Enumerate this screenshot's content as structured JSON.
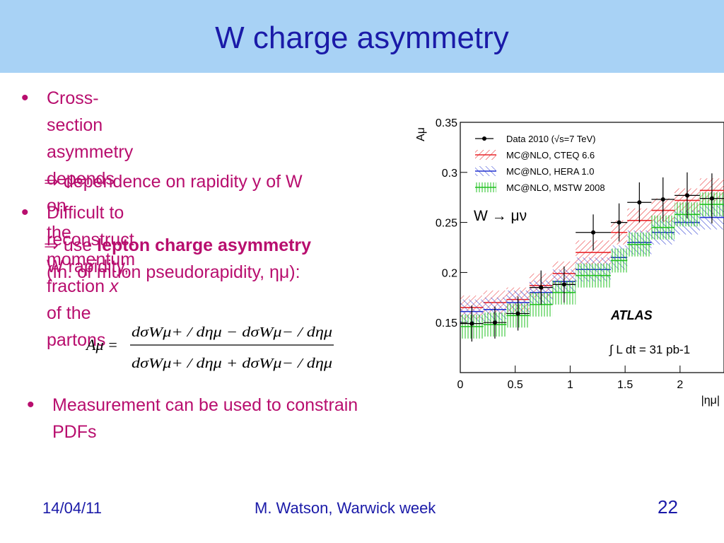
{
  "slide": {
    "title": "W charge asymmetry",
    "bullets": [
      {
        "lines": [
          "Cross-section asymmetry depends on",
          "the momentum fraction ",
          "x",
          " of the",
          "partons"
        ]
      },
      {
        "implies": "⇒ dependence on rapidity y of W"
      },
      {
        "text": "Difficult to reconstruct W rapidity,"
      },
      {
        "implies_prefix": "⇒ use ",
        "implies_bold": "lepton charge asymmetry"
      },
      {
        "text": "(fn. of muon pseudorapidity, ημ):"
      },
      {
        "text": "Measurement can be used to constrain PDFs"
      }
    ],
    "formula": {
      "lhs": "Aμ =",
      "numerator": "dσWμ+ / dημ − dσWμ− / dημ",
      "denominator": "dσWμ+ / dημ + dσWμ− / dημ"
    },
    "footer": {
      "date": "14/04/11",
      "author": "M. Watson, Warwick week",
      "page": "22"
    }
  },
  "chart_data": {
    "type": "scatter",
    "xlabel": "|ημ|",
    "ylabel": "Aμ",
    "xlim": [
      0,
      2.4
    ],
    "ylim": [
      0.1,
      0.35
    ],
    "xticks": [
      "0",
      "0.5",
      "1",
      "1.5",
      "2"
    ],
    "yticks": [
      "0.15",
      "0.2",
      "0.25",
      "0.3",
      "0.35"
    ],
    "annotations": [
      "W → μν",
      "ATLAS",
      "∫ L dt = 31 pb-1"
    ],
    "bins": [
      [
        0.0,
        0.21
      ],
      [
        0.21,
        0.42
      ],
      [
        0.42,
        0.63
      ],
      [
        0.63,
        0.84
      ],
      [
        0.84,
        1.05
      ],
      [
        1.05,
        1.37
      ],
      [
        1.37,
        1.52
      ],
      [
        1.52,
        1.74
      ],
      [
        1.74,
        1.95
      ],
      [
        1.95,
        2.18
      ],
      [
        2.18,
        2.4
      ]
    ],
    "series": [
      {
        "name": "Data 2010 (√s=7 TeV)",
        "color": "#000000",
        "values": [
          0.149,
          0.15,
          0.159,
          0.185,
          0.188,
          0.24,
          0.25,
          0.27,
          0.273,
          0.277,
          0.274
        ],
        "errors": [
          0.018,
          0.016,
          0.017,
          0.017,
          0.018,
          0.018,
          0.019,
          0.02,
          0.022,
          0.023,
          0.025
        ]
      },
      {
        "name": "MC@NLO, CTEQ 6.6",
        "color": "#e8262a",
        "values": [
          0.165,
          0.17,
          0.173,
          0.187,
          0.199,
          0.22,
          0.24,
          0.252,
          0.262,
          0.272,
          0.282
        ]
      },
      {
        "name": "MC@NLO, HERA 1.0",
        "color": "#2030d0",
        "values": [
          0.161,
          0.163,
          0.17,
          0.18,
          0.191,
          0.203,
          0.215,
          0.23,
          0.24,
          0.25,
          0.255
        ]
      },
      {
        "name": "MC@NLO, MSTW 2008",
        "color": "#20c020",
        "values": [
          0.146,
          0.148,
          0.157,
          0.168,
          0.18,
          0.197,
          0.212,
          0.228,
          0.245,
          0.258,
          0.268
        ]
      }
    ]
  }
}
